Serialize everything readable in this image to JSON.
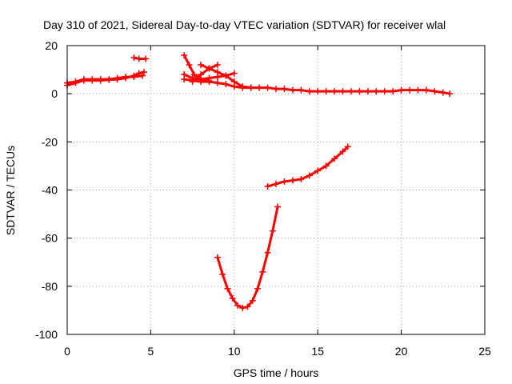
{
  "chart_data": {
    "type": "scatter",
    "title": "Day 310 of 2021, Sidereal Day-to-day VTEC variation (SDTVAR) for receiver wlal",
    "xlabel": "GPS time / hours",
    "ylabel": "SDTVAR / TECUs",
    "xlim": [
      0,
      25
    ],
    "ylim": [
      -100,
      20
    ],
    "xticks": [
      0,
      5,
      10,
      15,
      20,
      25
    ],
    "yticks": [
      -100,
      -80,
      -60,
      -40,
      -20,
      0,
      20
    ],
    "grid": true,
    "marker": "plus",
    "color": "#ff0000",
    "series": [
      {
        "x": [
          0.0,
          0.5,
          1.0,
          1.5,
          2.0,
          2.5,
          3.0,
          3.5,
          4.0,
          4.3,
          4.6
        ],
        "y": [
          3.5,
          4.5,
          5.5,
          5.5,
          5.5,
          5.8,
          6.0,
          6.5,
          7.5,
          8.5,
          9.0
        ]
      },
      {
        "x": [
          0.0,
          0.5,
          1.0,
          1.5,
          2.0,
          2.5,
          3.0,
          3.5,
          4.0,
          4.5
        ],
        "y": [
          4.5,
          5.0,
          6.0,
          6.0,
          6.0,
          6.0,
          6.5,
          7.0,
          7.0,
          7.5
        ]
      },
      {
        "x": [
          4.0,
          4.3,
          4.7
        ],
        "y": [
          15.0,
          14.5,
          14.5
        ]
      },
      {
        "x": [
          7.0,
          7.3,
          7.6,
          8.0,
          8.5
        ],
        "y": [
          16.0,
          12.0,
          8.0,
          6.0,
          5.5
        ]
      },
      {
        "x": [
          7.0,
          7.5,
          8.0,
          8.5,
          9.0,
          9.5,
          10.0,
          10.5,
          11.0,
          11.5,
          12.0,
          12.5,
          13.0,
          13.5,
          14.0,
          14.5,
          15.0,
          15.5,
          16.0,
          16.5,
          17.0,
          17.5,
          18.0,
          18.5,
          19.0,
          19.5,
          20.0,
          20.5,
          21.0,
          21.5,
          22.0,
          22.5,
          22.9
        ],
        "y": [
          6.0,
          5.5,
          5.0,
          5.0,
          4.5,
          4.0,
          3.0,
          2.5,
          2.5,
          2.5,
          2.5,
          2.0,
          2.0,
          1.5,
          1.5,
          1.0,
          1.0,
          1.0,
          1.0,
          1.0,
          1.0,
          1.0,
          1.0,
          1.0,
          1.0,
          1.0,
          1.5,
          1.5,
          1.5,
          1.5,
          1.0,
          0.5,
          0.0
        ]
      },
      {
        "x": [
          7.0,
          7.5,
          8.0,
          8.5,
          9.0,
          9.5,
          10.0
        ],
        "y": [
          8.0,
          6.5,
          6.0,
          6.5,
          7.0,
          7.5,
          8.5
        ]
      },
      {
        "x": [
          7.5,
          8.0,
          8.5,
          9.0
        ],
        "y": [
          5.0,
          8.0,
          10.5,
          12.0
        ]
      },
      {
        "x": [
          8.0,
          8.5,
          9.0,
          9.5,
          10.0,
          10.5,
          11.0
        ],
        "y": [
          12.0,
          10.5,
          9.0,
          7.5,
          5.0,
          3.0,
          2.5
        ]
      },
      {
        "x": [
          9.0,
          9.3,
          9.6,
          9.9,
          10.2,
          10.5,
          10.8,
          11.1,
          11.4,
          11.7,
          12.0,
          12.3,
          12.6
        ],
        "y": [
          -68.0,
          -75.0,
          -81.0,
          -85.0,
          -88.0,
          -89.0,
          -88.5,
          -86.0,
          -81.0,
          -74.0,
          -66.0,
          -57.0,
          -47.0
        ]
      },
      {
        "x": [
          12.0,
          12.5,
          13.0,
          13.5,
          14.0,
          14.5,
          15.0,
          15.5,
          16.0,
          16.5,
          16.8
        ],
        "y": [
          -38.5,
          -37.5,
          -36.5,
          -36.0,
          -35.5,
          -34.0,
          -32.0,
          -30.0,
          -27.0,
          -24.0,
          -22.0
        ]
      }
    ]
  }
}
